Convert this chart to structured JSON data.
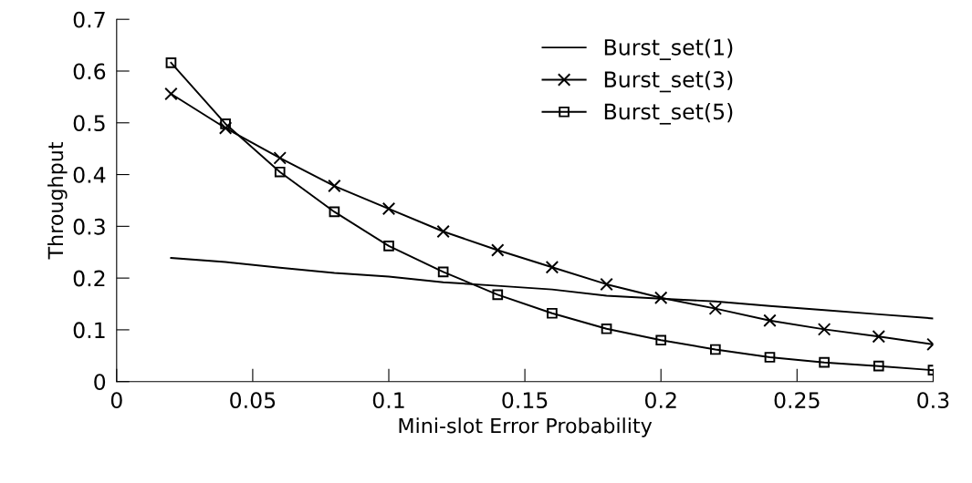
{
  "chart_data": {
    "type": "line",
    "xlabel": "Mini-slot Error Probability",
    "ylabel": "Throughput",
    "x": [
      0.02,
      0.04,
      0.06,
      0.08,
      0.1,
      0.12,
      0.14,
      0.16,
      0.18,
      0.2,
      0.22,
      0.24,
      0.26,
      0.28,
      0.3
    ],
    "series": [
      {
        "name": "Burst_set(1)",
        "color": "#000000",
        "marker": "none",
        "values": [
          0.239,
          0.231,
          0.22,
          0.21,
          0.203,
          0.192,
          0.185,
          0.178,
          0.166,
          0.16,
          0.155,
          0.146,
          0.138,
          0.13,
          0.122
        ]
      },
      {
        "name": "Burst_set(3)",
        "color": "#000000",
        "marker": "cross",
        "values": [
          0.556,
          0.49,
          0.432,
          0.378,
          0.334,
          0.29,
          0.254,
          0.221,
          0.188,
          0.162,
          0.141,
          0.118,
          0.101,
          0.087,
          0.072
        ]
      },
      {
        "name": "Burst_set(5)",
        "color": "#000000",
        "marker": "square",
        "values": [
          0.616,
          0.498,
          0.405,
          0.328,
          0.262,
          0.212,
          0.168,
          0.132,
          0.102,
          0.08,
          0.062,
          0.047,
          0.037,
          0.03,
          0.022
        ]
      }
    ],
    "xlim": [
      0,
      0.3
    ],
    "xticks": [
      0,
      0.05,
      0.1,
      0.15,
      0.2,
      0.25,
      0.3
    ],
    "ylim": [
      0,
      0.7
    ],
    "yticks": [
      0,
      0.1,
      0.2,
      0.3,
      0.4,
      0.5,
      0.6,
      0.7
    ],
    "grid": false,
    "legend": "top right",
    "line_style": "solid"
  }
}
